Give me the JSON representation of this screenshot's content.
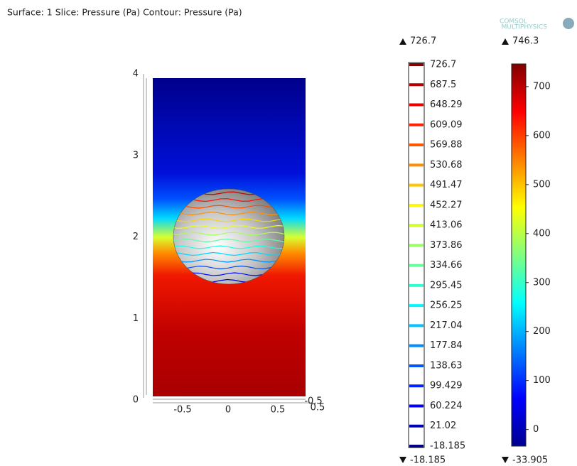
{
  "header": {
    "title": "Surface: 1  Slice: Pressure (Pa)  Contour: Pressure (Pa)",
    "logo_line1": "COMSOL",
    "logo_line2": "MULTIPHYSICS"
  },
  "axes": {
    "z_ticks": [
      "0",
      "1",
      "2",
      "3",
      "4"
    ],
    "x_ticks": [
      "-0.5",
      "0",
      "0.5"
    ],
    "y_ticks": [
      "-0.5",
      "0.5"
    ]
  },
  "contour_legend": {
    "max": 726.7,
    "min": -18.185,
    "levels": [
      726.7,
      687.5,
      648.29,
      609.09,
      569.88,
      530.68,
      491.47,
      452.27,
      413.06,
      373.86,
      334.66,
      295.45,
      256.25,
      217.04,
      177.84,
      138.63,
      99.429,
      60.224,
      21.02,
      -18.185
    ]
  },
  "surface_legend": {
    "max": 746.3,
    "min": -33.905,
    "ticks": [
      0,
      100,
      200,
      300,
      400,
      500,
      600,
      700
    ]
  }
}
